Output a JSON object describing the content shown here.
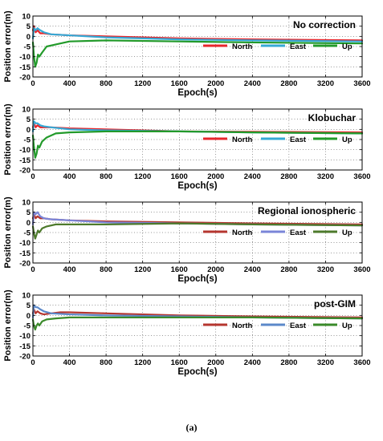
{
  "caption": "(a)",
  "chart_data": [
    {
      "type": "line",
      "title": "No correction",
      "xlabel": "Epoch(s)",
      "ylabel": "Position error(m)",
      "xlim": [
        0,
        3600
      ],
      "ylim": [
        -20,
        10
      ],
      "xticks": [
        0,
        400,
        800,
        1200,
        1600,
        2000,
        2400,
        2800,
        3200,
        3600
      ],
      "yticks": [
        10,
        5,
        0,
        -5,
        -10,
        -15,
        -20
      ],
      "grid": true,
      "legend": "inside-bottom-right",
      "series": [
        {
          "name": "North",
          "color": "#e8262b",
          "x": [
            0,
            10,
            30,
            50,
            80,
            120,
            200,
            400,
            800,
            1600,
            2400,
            3600
          ],
          "y": [
            3,
            5,
            2,
            3,
            1.5,
            1.5,
            1,
            0.5,
            0,
            -1,
            -1.5,
            -2
          ]
        },
        {
          "name": "East",
          "color": "#35a9d6",
          "x": [
            0,
            10,
            30,
            50,
            80,
            120,
            200,
            400,
            800,
            1600,
            2400,
            3600
          ],
          "y": [
            -1,
            4,
            3,
            4,
            3,
            2,
            1,
            0.5,
            -0.5,
            -1.5,
            -2,
            -2.5
          ]
        },
        {
          "name": "Up",
          "color": "#229a2a",
          "x": [
            0,
            10,
            25,
            40,
            55,
            70,
            100,
            150,
            250,
            400,
            800,
            1600,
            2400,
            3600
          ],
          "y": [
            -3,
            -9,
            -15,
            -13,
            -9,
            -10,
            -8,
            -5,
            -4,
            -2.5,
            -2,
            -2.5,
            -3,
            -3.5
          ]
        }
      ]
    },
    {
      "type": "line",
      "title": "Klobuchar",
      "xlabel": "Epoch(s)",
      "ylabel": "Position error(m)",
      "xlim": [
        0,
        3600
      ],
      "ylim": [
        -20,
        10
      ],
      "xticks": [
        0,
        400,
        800,
        1200,
        1600,
        2000,
        2400,
        2800,
        3200,
        3600
      ],
      "yticks": [
        10,
        5,
        0,
        -5,
        -10,
        -15,
        -20
      ],
      "grid": true,
      "legend": "inside-bottom-right",
      "series": [
        {
          "name": "North",
          "color": "#e8262b",
          "x": [
            0,
            10,
            30,
            50,
            80,
            120,
            200,
            400,
            800,
            1600,
            2400,
            3600
          ],
          "y": [
            1,
            3,
            1,
            2,
            1,
            1,
            1,
            0.5,
            0,
            -1,
            -1.2,
            -1.5
          ]
        },
        {
          "name": "East",
          "color": "#35a9d6",
          "x": [
            0,
            10,
            30,
            50,
            80,
            120,
            200,
            400,
            800,
            1600,
            2400,
            3600
          ],
          "y": [
            -1,
            4,
            3,
            3,
            2,
            1.5,
            1,
            0,
            -0.5,
            -1,
            -1.5,
            -2
          ]
        },
        {
          "name": "Up",
          "color": "#229a2a",
          "x": [
            0,
            10,
            25,
            40,
            55,
            70,
            100,
            150,
            250,
            400,
            800,
            1600,
            2400,
            3600
          ],
          "y": [
            -3,
            -8,
            -14,
            -12,
            -8,
            -9,
            -6,
            -4,
            -2,
            -1.5,
            -1,
            -1,
            -1.5,
            -2
          ]
        }
      ]
    },
    {
      "type": "line",
      "title": "Regional ionospheric",
      "xlabel": "Epoch(s)",
      "ylabel": "Position error(m)",
      "xlim": [
        0,
        3600
      ],
      "ylim": [
        -20,
        10
      ],
      "xticks": [
        0,
        400,
        800,
        1200,
        1600,
        2000,
        2400,
        2800,
        3200,
        3600
      ],
      "yticks": [
        10,
        5,
        0,
        -5,
        -10,
        -15,
        -20
      ],
      "grid": true,
      "legend": "inside-bottom-right",
      "series": [
        {
          "name": "North",
          "color": "#b5362f",
          "x": [
            0,
            10,
            30,
            50,
            80,
            120,
            200,
            400,
            800,
            1600,
            2400,
            3600
          ],
          "y": [
            2,
            4,
            2,
            3,
            2,
            2,
            1.5,
            1,
            0.5,
            0,
            -0.5,
            -1
          ]
        },
        {
          "name": "East",
          "color": "#7a85d8",
          "x": [
            0,
            10,
            30,
            50,
            80,
            120,
            200,
            400,
            800,
            1600,
            2400,
            3600
          ],
          "y": [
            -1,
            5,
            4,
            5,
            3,
            2,
            1.5,
            1,
            0,
            -0.5,
            -1,
            -1.5
          ]
        },
        {
          "name": "Up",
          "color": "#4d7a2b",
          "x": [
            0,
            10,
            25,
            40,
            55,
            70,
            100,
            150,
            250,
            400,
            800,
            1600,
            2400,
            3600
          ],
          "y": [
            -2,
            -5,
            -8,
            -6,
            -4,
            -5,
            -3,
            -2,
            -1,
            -1,
            -1,
            -0.5,
            -1,
            -1.5
          ]
        }
      ]
    },
    {
      "type": "line",
      "title": "post-GIM",
      "xlabel": "Epoch(s)",
      "ylabel": "Position error(m)",
      "xlim": [
        0,
        3600
      ],
      "ylim": [
        -20,
        10
      ],
      "xticks": [
        0,
        400,
        800,
        1200,
        1600,
        2000,
        2400,
        2800,
        3200,
        3600
      ],
      "yticks": [
        10,
        5,
        0,
        -5,
        -10,
        -15,
        -20
      ],
      "grid": true,
      "legend": "inside-bottom-right",
      "series": [
        {
          "name": "North",
          "color": "#b5362f",
          "x": [
            0,
            10,
            30,
            50,
            80,
            120,
            200,
            300,
            400,
            800,
            1600,
            2400,
            3600
          ],
          "y": [
            1,
            3,
            1,
            2,
            1,
            0.5,
            1,
            1.5,
            1.5,
            1,
            0,
            -0.5,
            -1
          ]
        },
        {
          "name": "East",
          "color": "#5b88c9",
          "x": [
            0,
            10,
            30,
            50,
            80,
            120,
            200,
            400,
            800,
            1600,
            2400,
            3600
          ],
          "y": [
            -1,
            5,
            4,
            4,
            3,
            2,
            1,
            0.5,
            0,
            -0.5,
            -1,
            -1.5
          ]
        },
        {
          "name": "Up",
          "color": "#3a8a2a",
          "x": [
            0,
            10,
            25,
            40,
            55,
            70,
            100,
            150,
            250,
            400,
            800,
            1600,
            2400,
            3600
          ],
          "y": [
            -2,
            -5,
            -7,
            -5,
            -4,
            -5,
            -3,
            -2,
            -1.5,
            -1,
            -1,
            -1,
            -1,
            -1.5
          ]
        }
      ]
    }
  ]
}
